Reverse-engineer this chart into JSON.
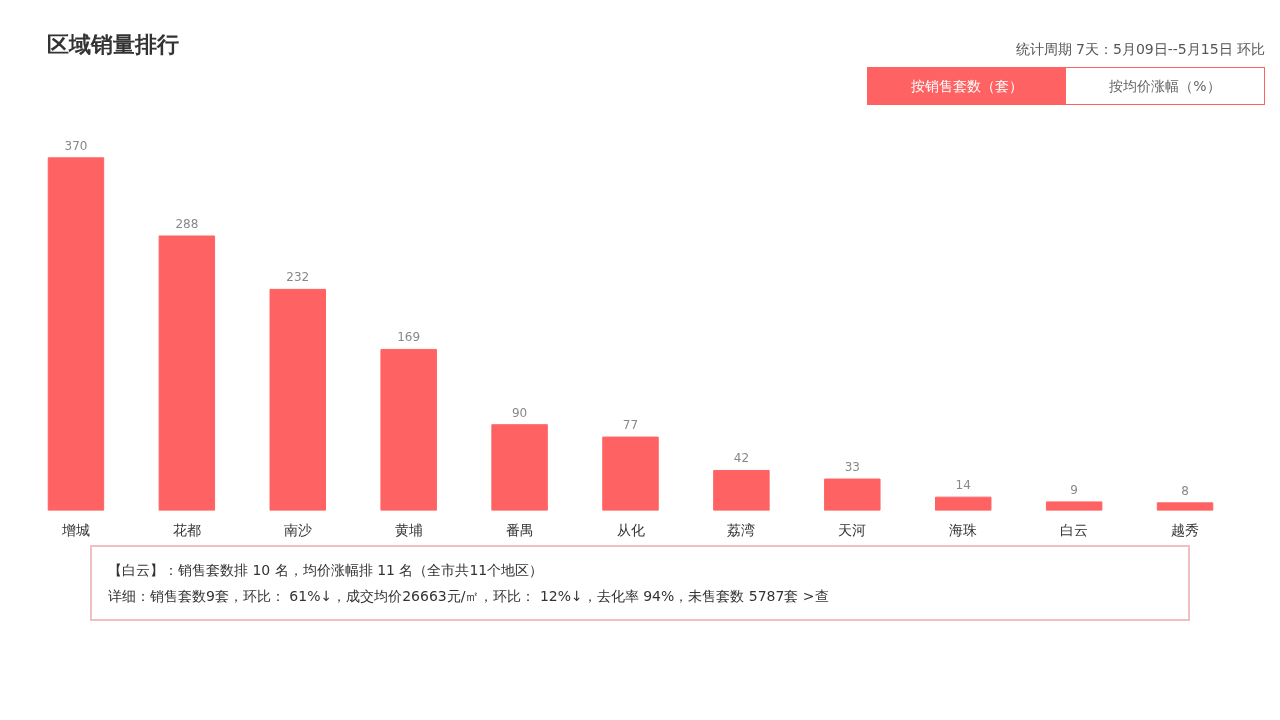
{
  "chart_data": {
    "type": "bar",
    "title": "区域销量排行",
    "subtitle": "统计周期 7天：5月09日--5月15日 环比",
    "categories": [
      "增城",
      "花都",
      "南沙",
      "黄埔",
      "番禺",
      "从化",
      "荔湾",
      "天河",
      "海珠",
      "白云",
      "越秀"
    ],
    "values": [
      370,
      288,
      232,
      169,
      90,
      77,
      42,
      33,
      14,
      9,
      8
    ],
    "color": "#ff6262",
    "data_labels": true,
    "grid": false,
    "tick_labels": "x",
    "annotations": [
      "按销售套数（套）",
      "按均价涨幅（%）",
      "【白云】：销售套数排 10 名，均价涨幅排 11 名（全市共11个地区）",
      "详细：销售套数9套，环比： 61%↓，成交均价26663元/㎡，环比： 12%↓，去化率 94%，未售套数 5787套 >查"
    ]
  }
}
